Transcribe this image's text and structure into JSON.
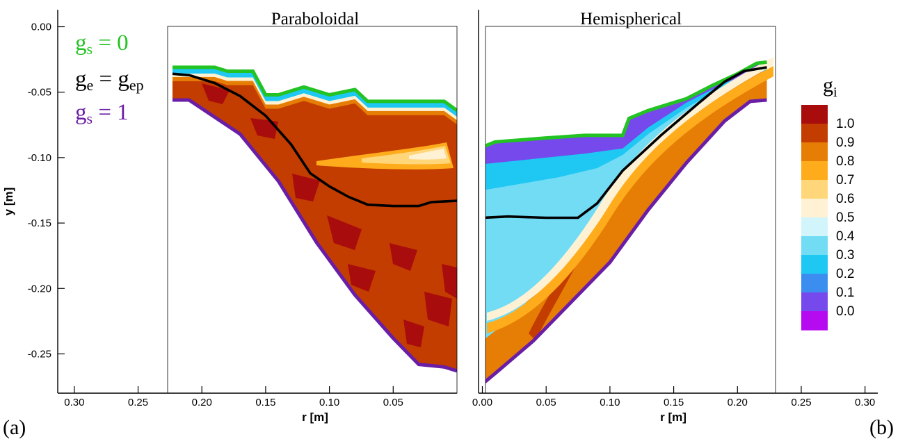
{
  "chart_data": {
    "type": "contour",
    "ylabel": "y [m]",
    "xlabel": "r [m]",
    "y_ticks": [
      "0.00",
      "-0.05",
      "-0.10",
      "-0.15",
      "-0.20",
      "-0.25"
    ],
    "y_tick_values": [
      0.0,
      -0.05,
      -0.1,
      -0.15,
      -0.2,
      -0.25
    ],
    "ylim": [
      -0.28,
      0.013
    ],
    "legend": {
      "gs0": {
        "main": "g",
        "sub": "s",
        "rest": " = 0",
        "color": "#22c322"
      },
      "ge": {
        "main": "g",
        "sub": "e",
        "mid": " = g",
        "sub2": "ep",
        "color": "#000000"
      },
      "gs1": {
        "main": "g",
        "sub": "s",
        "rest": " = 1",
        "color": "#6a1ea6"
      }
    },
    "panels": [
      {
        "id": "a",
        "label": "(a)",
        "title": "Paraboloidal",
        "x_ticks": [
          "0.30",
          "0.25",
          "0.20",
          "0.15",
          "0.10",
          "0.05"
        ],
        "x_tick_values": [
          0.3,
          0.25,
          0.2,
          0.15,
          0.1,
          0.05
        ],
        "xlim": [
          0.313,
          0.0
        ],
        "domain_r": [
          0.223,
          0.0
        ],
        "top_gs0": [
          [
            0.223,
            -0.031
          ],
          [
            0.19,
            -0.031
          ],
          [
            0.18,
            -0.034
          ],
          [
            0.16,
            -0.034
          ],
          [
            0.15,
            -0.052
          ],
          [
            0.14,
            -0.052
          ],
          [
            0.12,
            -0.046
          ],
          [
            0.1,
            -0.052
          ],
          [
            0.08,
            -0.048
          ],
          [
            0.07,
            -0.057
          ],
          [
            0.01,
            -0.057
          ],
          [
            0.0,
            -0.064
          ]
        ],
        "bottom_gs1": [
          [
            0.223,
            -0.056
          ],
          [
            0.21,
            -0.056
          ],
          [
            0.17,
            -0.082
          ],
          [
            0.14,
            -0.118
          ],
          [
            0.11,
            -0.165
          ],
          [
            0.08,
            -0.205
          ],
          [
            0.05,
            -0.238
          ],
          [
            0.03,
            -0.258
          ],
          [
            0.01,
            -0.26
          ],
          [
            0.0,
            -0.263
          ]
        ],
        "line_ge": [
          [
            0.223,
            -0.036
          ],
          [
            0.21,
            -0.037
          ],
          [
            0.19,
            -0.043
          ],
          [
            0.17,
            -0.053
          ],
          [
            0.15,
            -0.068
          ],
          [
            0.13,
            -0.09
          ],
          [
            0.115,
            -0.112
          ],
          [
            0.1,
            -0.122
          ],
          [
            0.085,
            -0.13
          ],
          [
            0.07,
            -0.136
          ],
          [
            0.05,
            -0.137
          ],
          [
            0.03,
            -0.137
          ],
          [
            0.02,
            -0.134
          ],
          [
            0.0,
            -0.133
          ]
        ]
      },
      {
        "id": "b",
        "label": "(b)",
        "title": "Hemispherical",
        "x_ticks": [
          "0.00",
          "0.05",
          "0.10",
          "0.15",
          "0.20",
          "0.25",
          "0.30"
        ],
        "x_tick_values": [
          0.0,
          0.05,
          0.1,
          0.15,
          0.2,
          0.25,
          0.3
        ],
        "xlim": [
          -0.003,
          0.31
        ],
        "domain_r": [
          0.0,
          0.223
        ],
        "top_gs0": [
          [
            0.0,
            -0.092
          ],
          [
            0.01,
            -0.088
          ],
          [
            0.05,
            -0.085
          ],
          [
            0.08,
            -0.083
          ],
          [
            0.11,
            -0.083
          ],
          [
            0.115,
            -0.07
          ],
          [
            0.13,
            -0.064
          ],
          [
            0.16,
            -0.055
          ],
          [
            0.18,
            -0.045
          ],
          [
            0.2,
            -0.036
          ],
          [
            0.215,
            -0.028
          ],
          [
            0.223,
            -0.027
          ]
        ],
        "bottom_gs1": [
          [
            0.0,
            -0.273
          ],
          [
            0.01,
            -0.265
          ],
          [
            0.04,
            -0.24
          ],
          [
            0.07,
            -0.21
          ],
          [
            0.1,
            -0.18
          ],
          [
            0.13,
            -0.14
          ],
          [
            0.16,
            -0.104
          ],
          [
            0.19,
            -0.072
          ],
          [
            0.21,
            -0.057
          ],
          [
            0.223,
            -0.056
          ]
        ],
        "line_ge": [
          [
            0.0,
            -0.146
          ],
          [
            0.02,
            -0.145
          ],
          [
            0.05,
            -0.146
          ],
          [
            0.075,
            -0.146
          ],
          [
            0.09,
            -0.135
          ],
          [
            0.11,
            -0.11
          ],
          [
            0.14,
            -0.083
          ],
          [
            0.17,
            -0.058
          ],
          [
            0.19,
            -0.042
          ],
          [
            0.205,
            -0.034
          ],
          [
            0.223,
            -0.031
          ]
        ]
      }
    ],
    "colorbar": {
      "title_main": "g",
      "title_sub": "i",
      "levels": [
        "1.0",
        "0.9",
        "0.8",
        "0.7",
        "0.6",
        "0.5",
        "0.4",
        "0.3",
        "0.2",
        "0.1",
        "0.0"
      ],
      "level_values": [
        1.0,
        0.9,
        0.8,
        0.7,
        0.6,
        0.5,
        0.4,
        0.3,
        0.2,
        0.1,
        0.0
      ],
      "colors": [
        "#a80c0c",
        "#c43d00",
        "#e67e06",
        "#ffac1c",
        "#ffd67a",
        "#fff2d4",
        "#d2f5fb",
        "#72dcf5",
        "#1ec8f2",
        "#3b8df0",
        "#7549ec",
        "#b60af0"
      ]
    }
  }
}
